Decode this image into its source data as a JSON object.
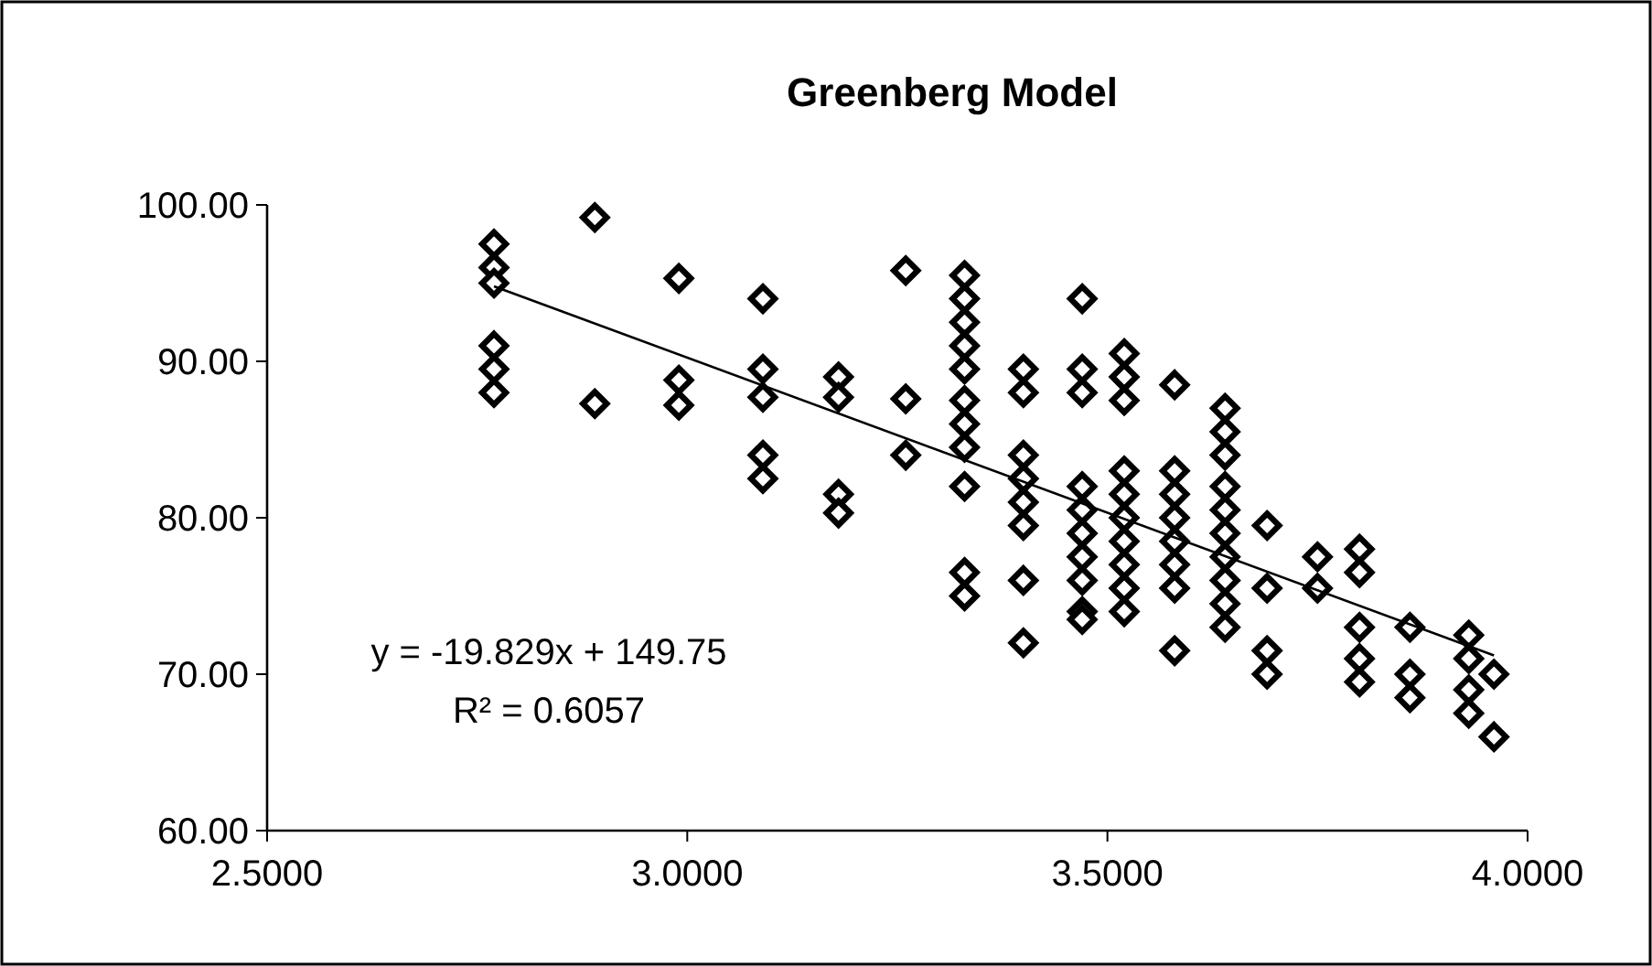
{
  "chart_data": {
    "type": "scatter",
    "title": "Greenberg Model",
    "grid": false,
    "xlim": [
      2.5,
      4.0
    ],
    "ylim": [
      60,
      100
    ],
    "xticks": [
      {
        "value": 2.5,
        "label": "2.5000"
      },
      {
        "value": 3.0,
        "label": "3.0000"
      },
      {
        "value": 3.5,
        "label": "3.5000"
      },
      {
        "value": 4.0,
        "label": "4.0000"
      }
    ],
    "yticks": [
      {
        "value": 60,
        "label": "60.00"
      },
      {
        "value": 70,
        "label": "70.00"
      },
      {
        "value": 80,
        "label": "80.00"
      },
      {
        "value": 90,
        "label": "90.00"
      },
      {
        "value": 100,
        "label": "100.00"
      }
    ],
    "annotations": [
      "y = -19.829x + 149.75",
      "R² = 0.6057"
    ],
    "series": [
      {
        "color": "#000000",
        "marker": "diamond",
        "x": [
          2.77,
          2.77,
          2.77,
          2.77,
          2.77,
          2.77,
          2.89,
          2.89,
          2.99,
          2.99,
          2.99,
          3.09,
          3.09,
          3.09,
          3.09,
          3.09,
          3.18,
          3.18,
          3.18,
          3.18,
          3.26,
          3.26,
          3.26,
          3.33,
          3.33,
          3.33,
          3.33,
          3.33,
          3.33,
          3.33,
          3.33,
          3.33,
          3.33,
          3.33,
          3.4,
          3.4,
          3.4,
          3.4,
          3.4,
          3.4,
          3.4,
          3.4,
          3.47,
          3.47,
          3.47,
          3.47,
          3.47,
          3.47,
          3.47,
          3.47,
          3.47,
          3.47,
          3.52,
          3.52,
          3.52,
          3.52,
          3.52,
          3.52,
          3.52,
          3.52,
          3.52,
          3.52,
          3.58,
          3.58,
          3.58,
          3.58,
          3.58,
          3.58,
          3.58,
          3.58,
          3.64,
          3.64,
          3.64,
          3.64,
          3.64,
          3.64,
          3.64,
          3.64,
          3.64,
          3.64,
          3.69,
          3.69,
          3.69,
          3.69,
          3.75,
          3.75,
          3.8,
          3.8,
          3.8,
          3.8,
          3.8,
          3.86,
          3.86,
          3.86,
          3.93,
          3.93,
          3.93,
          3.93,
          3.96,
          3.96
        ],
        "values": [
          97.5,
          96,
          95,
          91,
          89.5,
          88,
          99.2,
          87.3,
          95.3,
          88.8,
          87.2,
          94,
          89.5,
          87.7,
          84,
          82.5,
          89,
          87.7,
          81.5,
          80.3,
          95.8,
          87.6,
          84,
          95.5,
          94,
          92.5,
          91,
          89.5,
          87.5,
          86,
          84.5,
          82,
          76.5,
          75,
          89.5,
          88,
          84,
          82.5,
          81,
          79.5,
          76,
          72,
          94,
          89.5,
          88,
          82,
          80.5,
          79,
          77.5,
          76,
          74,
          73.5,
          90.5,
          89,
          87.5,
          83,
          81.5,
          80,
          78.5,
          77,
          75.5,
          74,
          88.5,
          83,
          81.5,
          80,
          78.5,
          77,
          75.5,
          71.5,
          87,
          85.5,
          84,
          82,
          80.5,
          79,
          77.5,
          76,
          74.5,
          73,
          79.5,
          75.5,
          71.5,
          70,
          77.5,
          75.5,
          78,
          76.5,
          73,
          71,
          69.5,
          73,
          70,
          68.5,
          72.5,
          71,
          69,
          67.5,
          70,
          66
        ]
      },
      {
        "type": "line",
        "color": "#000000",
        "x": [
          2.77,
          3.96
        ],
        "values": [
          94.8,
          71.2
        ]
      }
    ]
  }
}
